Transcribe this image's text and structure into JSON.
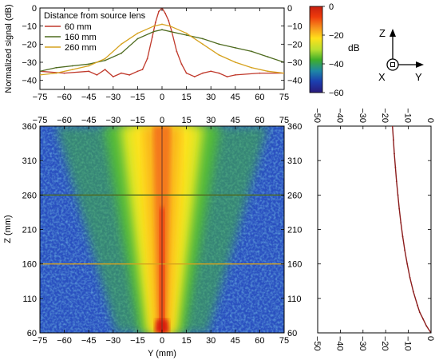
{
  "chart_data": [
    {
      "type": "line",
      "ylabel": "Normalized signal (dB)",
      "xlim": [
        -75,
        75
      ],
      "ylim": [
        -45,
        0
      ],
      "x_ticks": [
        -75,
        -60,
        -45,
        -30,
        -15,
        0,
        15,
        30,
        45,
        60,
        75
      ],
      "y_ticks": [
        0,
        -10,
        -20,
        -30,
        -40
      ],
      "legend_title": "Distance from source lens",
      "legend_position": "top-left",
      "series": [
        {
          "name": "60 mm",
          "color": "#c0392b",
          "x": [
            -75,
            -60,
            -45,
            -40,
            -35,
            -30,
            -25,
            -20,
            -15,
            -12,
            -9,
            -6,
            -4,
            -2,
            0,
            2,
            4,
            6,
            9,
            12,
            15,
            20,
            25,
            30,
            35,
            40,
            45,
            60,
            75
          ],
          "y": [
            -35,
            -36,
            -35,
            -37,
            -34,
            -38,
            -36,
            -37,
            -35,
            -34,
            -28,
            -16,
            -8,
            -2,
            0,
            -3,
            -7,
            -13,
            -24,
            -31,
            -36,
            -38,
            -36,
            -35,
            -36,
            -38,
            -37,
            -36,
            -36
          ]
        },
        {
          "name": "160 mm",
          "color": "#4e6b1f",
          "x": [
            -75,
            -65,
            -55,
            -45,
            -35,
            -25,
            -15,
            -5,
            0,
            5,
            15,
            25,
            35,
            45,
            55,
            65,
            75
          ],
          "y": [
            -35,
            -33,
            -32,
            -31,
            -29,
            -25,
            -17,
            -13,
            -12,
            -13,
            -15,
            -17,
            -20,
            -22,
            -24,
            -27,
            -30
          ]
        },
        {
          "name": "260 mm",
          "color": "#d6a21e",
          "x": [
            -75,
            -65,
            -55,
            -45,
            -35,
            -25,
            -15,
            -5,
            0,
            5,
            15,
            25,
            35,
            45,
            55,
            65,
            75
          ],
          "y": [
            -37,
            -36,
            -34,
            -32,
            -28,
            -20,
            -14,
            -10,
            -9,
            -10,
            -14,
            -20,
            -26,
            -30,
            -33,
            -35,
            -36
          ]
        }
      ]
    },
    {
      "type": "heatmap",
      "xlabel": "Y (mm)",
      "ylabel": "Z (mm)",
      "xlim": [
        -75,
        75
      ],
      "ylim": [
        60,
        360
      ],
      "x_ticks": [
        -75,
        -60,
        -45,
        -30,
        -15,
        0,
        15,
        30,
        45,
        60,
        75
      ],
      "y_ticks": [
        60,
        110,
        160,
        210,
        260,
        310,
        360
      ],
      "colorbar": {
        "label": "dB",
        "range": [
          -60,
          0
        ],
        "ticks": [
          0,
          -20,
          -40,
          -60
        ]
      },
      "horizontal_markers": [
        {
          "z": 160,
          "color": "#d6a21e"
        },
        {
          "z": 260,
          "color": "#4e6b1f"
        }
      ],
      "vertical_marker": {
        "y": 0,
        "color": "#6b3a2a"
      }
    },
    {
      "type": "line",
      "xlim": [
        -50,
        0
      ],
      "x_ticks": [
        -50,
        -40,
        -30,
        -20,
        -10,
        0
      ],
      "ylim": [
        60,
        360
      ],
      "series": [
        {
          "color": "#8b1c1c",
          "z": [
            60,
            70,
            80,
            90,
            100,
            120,
            140,
            160,
            180,
            200,
            220,
            240,
            260,
            280,
            300,
            320,
            340,
            360
          ],
          "value": [
            0,
            -2,
            -3.5,
            -5,
            -6,
            -7.8,
            -9.3,
            -10.5,
            -11.6,
            -12.5,
            -13.3,
            -14,
            -14.6,
            -15.2,
            -15.7,
            -16.2,
            -16.6,
            -17
          ]
        }
      ]
    }
  ],
  "axes_icon": {
    "labels": [
      "Z",
      "X",
      "Y"
    ]
  }
}
